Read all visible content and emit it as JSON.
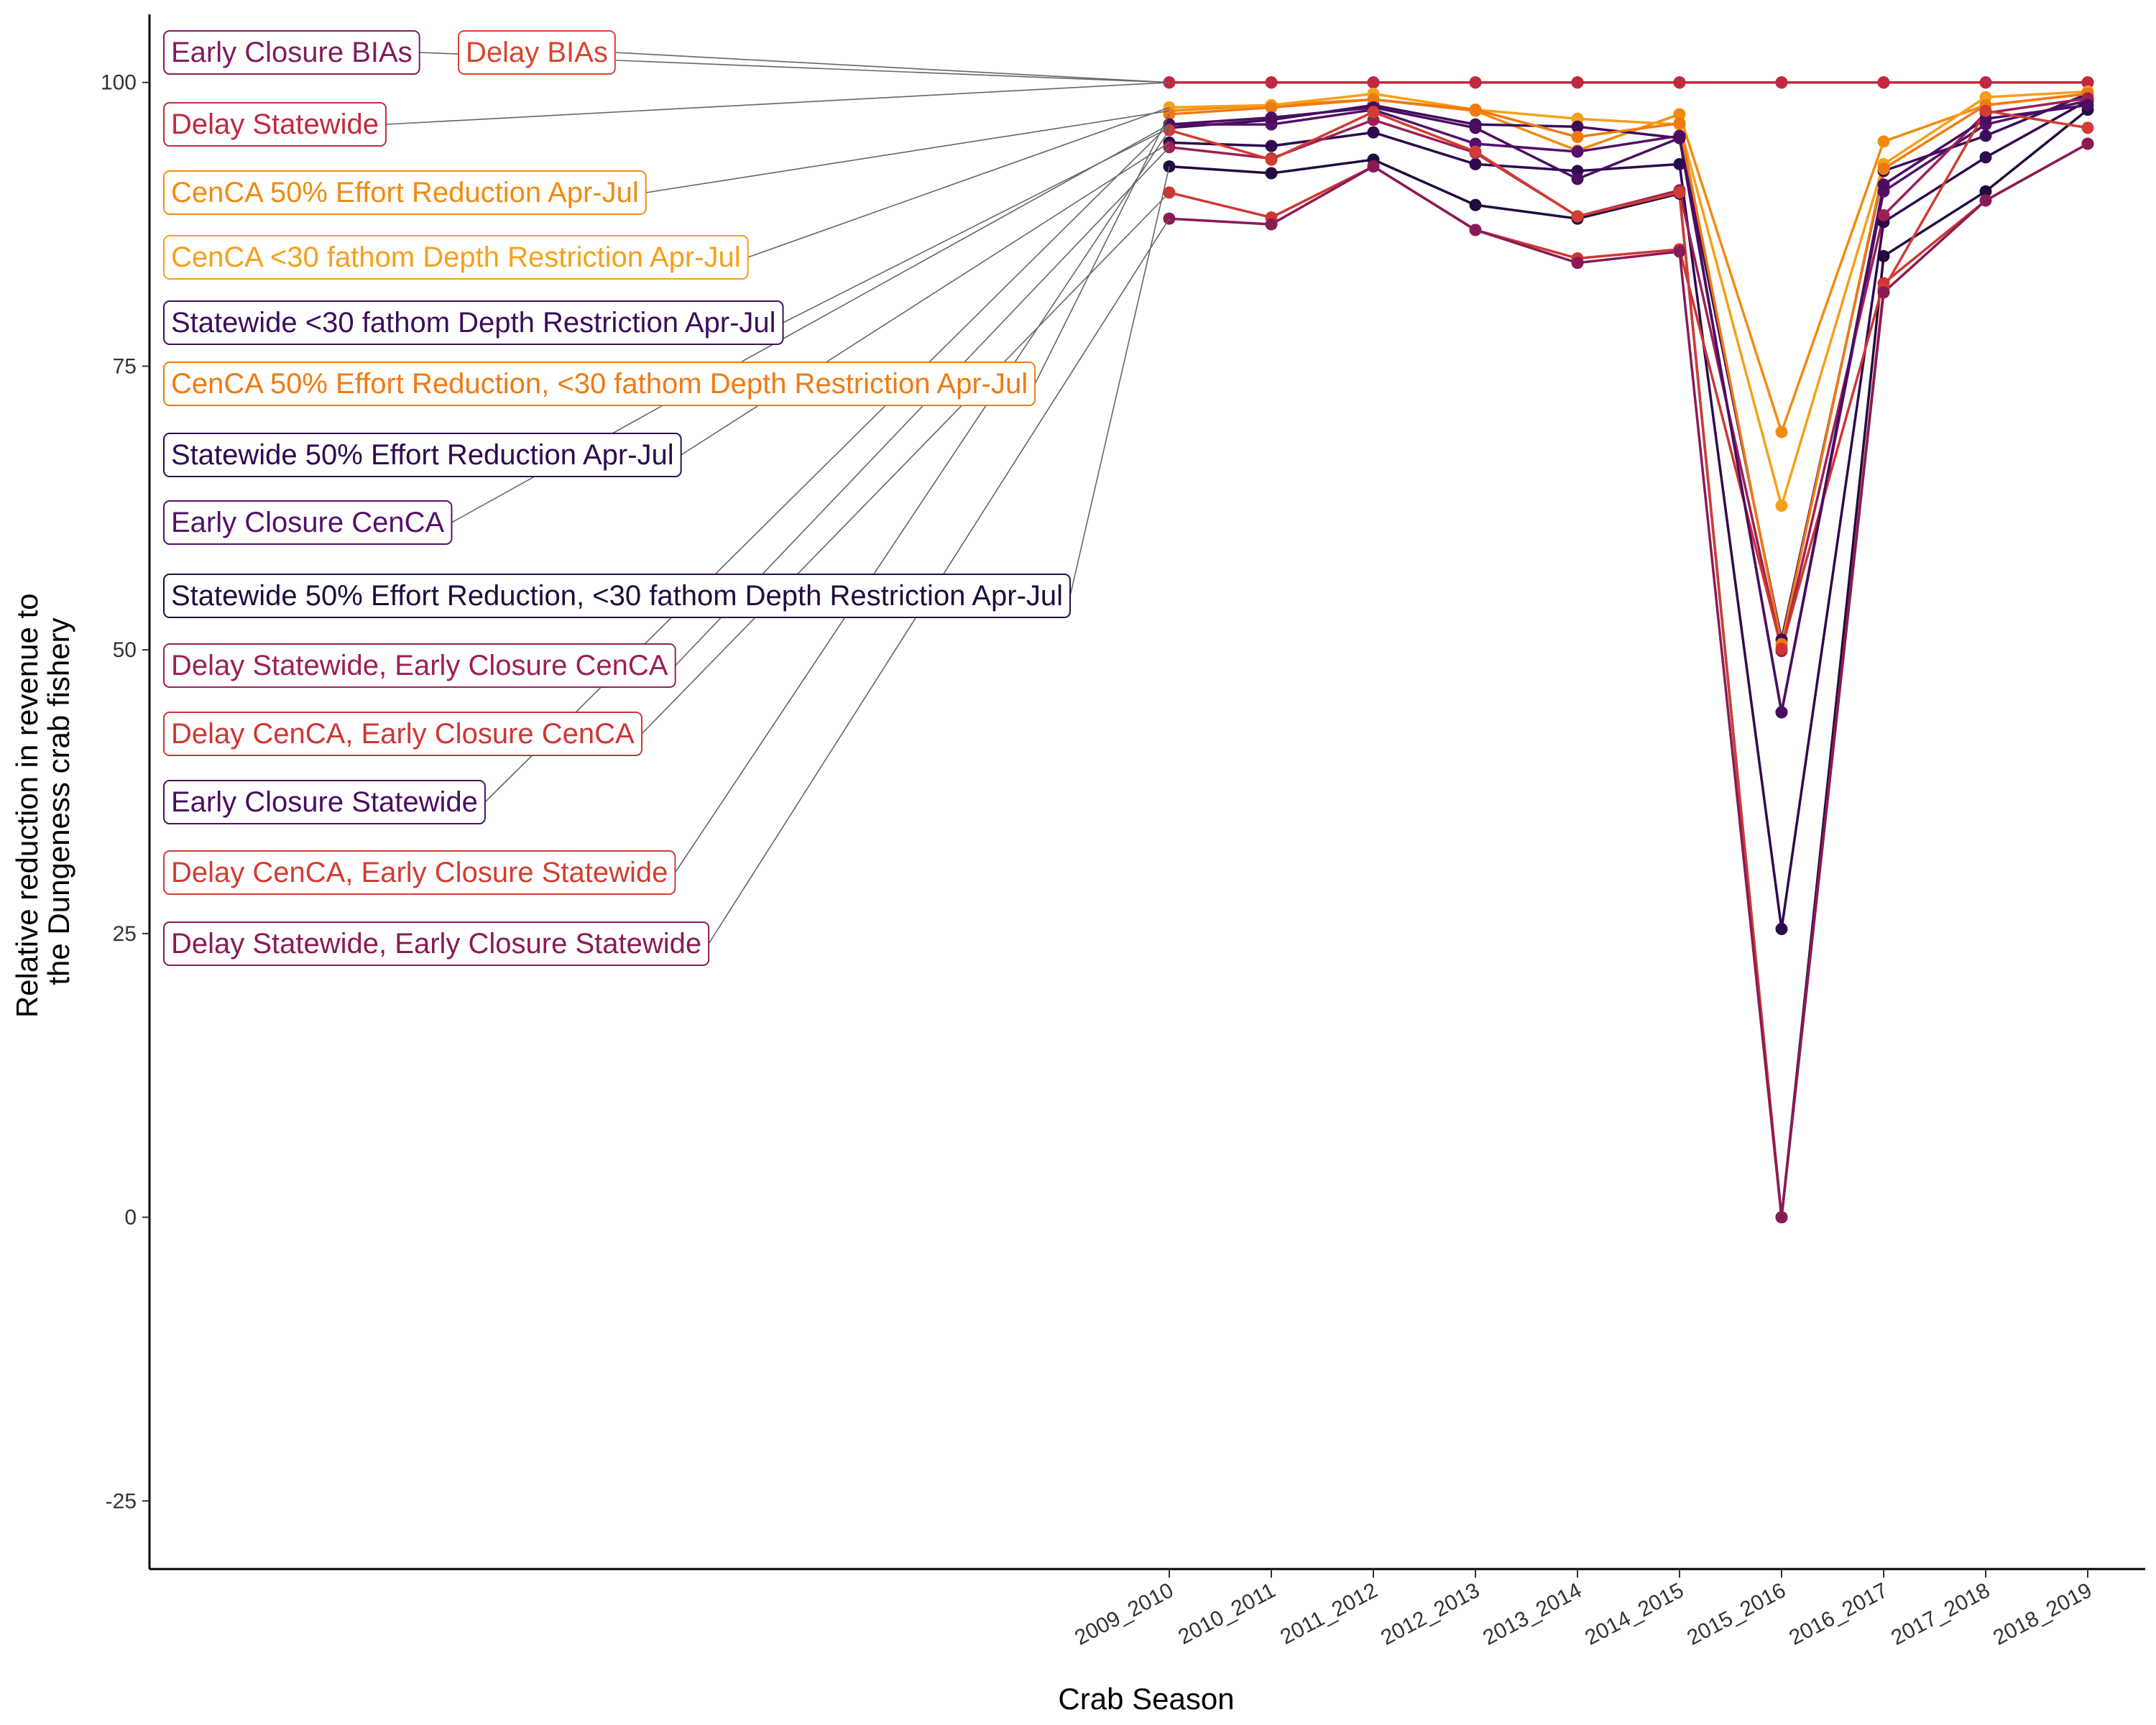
{
  "chart_data": {
    "type": "line",
    "title": "",
    "xlabel": "Crab Season",
    "ylabel": [
      "Relative reduction in revenue to",
      "the Dungeness crab fishery"
    ],
    "categories": [
      "2009_2010",
      "2010_2011",
      "2011_2012",
      "2012_2013",
      "2013_2014",
      "2014_2015",
      "2015_2016",
      "2016_2017",
      "2017_2018",
      "2018_2019"
    ],
    "ylim": [
      -31,
      106
    ],
    "yticks": [
      -25,
      0,
      25,
      50,
      75,
      100
    ],
    "ytick_labels": [
      "-25",
      "0",
      "25",
      "50",
      "75",
      "100"
    ],
    "grid": false,
    "legend": "direct labels on the left",
    "series": [
      {
        "name": "Early Closure BIAs",
        "color": "#7f1d5e",
        "values": [
          100,
          100,
          100,
          100,
          100,
          100,
          100,
          100,
          100,
          100
        ]
      },
      {
        "name": "Delay BIAs",
        "color": "#d8442f",
        "values": [
          100,
          100,
          100,
          100,
          100,
          100,
          100,
          100,
          100,
          100
        ]
      },
      {
        "name": "Delay Statewide",
        "color": "#c0293f",
        "values": [
          100,
          100,
          100,
          100,
          100,
          100,
          100,
          100,
          100,
          100
        ]
      },
      {
        "name": "CenCA 50% Effort Reduction Apr-Jul",
        "color": "#f18b10",
        "values": [
          97.5,
          98.0,
          98.5,
          97.5,
          94.0,
          97.2,
          69.2,
          94.8,
          98.0,
          99.0
        ]
      },
      {
        "name": "CenCA <30 fathom Depth Restriction Apr-Jul",
        "color": "#f5a01a",
        "values": [
          97.8,
          98.0,
          99.0,
          97.6,
          96.8,
          96.3,
          62.7,
          92.8,
          98.7,
          99.2
        ]
      },
      {
        "name": "Statewide <30 fathom Depth Restriction Apr-Jul",
        "color": "#3d0d5a",
        "values": [
          96.0,
          96.7,
          98.0,
          96.3,
          96.1,
          95.1,
          50.9,
          92.2,
          95.3,
          99.0
        ]
      },
      {
        "name": "CenCA 50% Effort Reduction, <30 fathom Depth Restriction Apr-Jul",
        "color": "#f07a12",
        "values": [
          97.2,
          97.8,
          98.5,
          97.6,
          95.2,
          96.4,
          50.5,
          92.4,
          98.0,
          99.0
        ]
      },
      {
        "name": "Statewide 50% Effort Reduction Apr-Jul",
        "color": "#2e0a4f",
        "values": [
          94.7,
          94.4,
          95.6,
          92.8,
          92.2,
          92.8,
          25.4,
          87.7,
          93.4,
          98.4
        ]
      },
      {
        "name": "Early Closure CenCA",
        "color": "#54106a",
        "values": [
          96.3,
          96.3,
          97.6,
          94.6,
          93.9,
          95.3,
          44.5,
          90.4,
          96.3,
          98.4
        ]
      },
      {
        "name": "Statewide 50% Effort Reduction, <30 fathom Depth Restriction Apr-Jul",
        "color": "#220b3f",
        "values": [
          92.6,
          92.0,
          93.2,
          89.2,
          88.0,
          90.2,
          0,
          84.7,
          90.4,
          97.6
        ]
      },
      {
        "name": "Delay Statewide, Early Closure CenCA",
        "color": "#9c1f55",
        "values": [
          94.3,
          93.3,
          96.7,
          93.8,
          88.2,
          90.5,
          49.9,
          88.3,
          97.3,
          98.6
        ]
      },
      {
        "name": "Delay CenCA, Early Closure CenCA",
        "color": "#cf3633",
        "values": [
          90.3,
          88.1,
          92.6,
          87.0,
          84.5,
          85.3,
          50.1,
          82.3,
          89.6,
          94.6
        ]
      },
      {
        "name": "Early Closure Statewide",
        "color": "#4a0d62",
        "values": [
          96.3,
          96.9,
          97.8,
          96.0,
          91.5,
          95.1,
          44.5,
          91.0,
          96.8,
          98.0
        ]
      },
      {
        "name": "Delay CenCA, Early Closure Statewide",
        "color": "#d03d33",
        "values": [
          95.8,
          93.2,
          97.4,
          93.9,
          88.2,
          90.3,
          0,
          81.8,
          97.5,
          96.0
        ]
      },
      {
        "name": "Delay Statewide, Early Closure Statewide",
        "color": "#8a1a55",
        "values": [
          88.0,
          87.5,
          92.6,
          87.0,
          84.1,
          85.1,
          0,
          81.5,
          89.6,
          94.6
        ]
      }
    ]
  }
}
